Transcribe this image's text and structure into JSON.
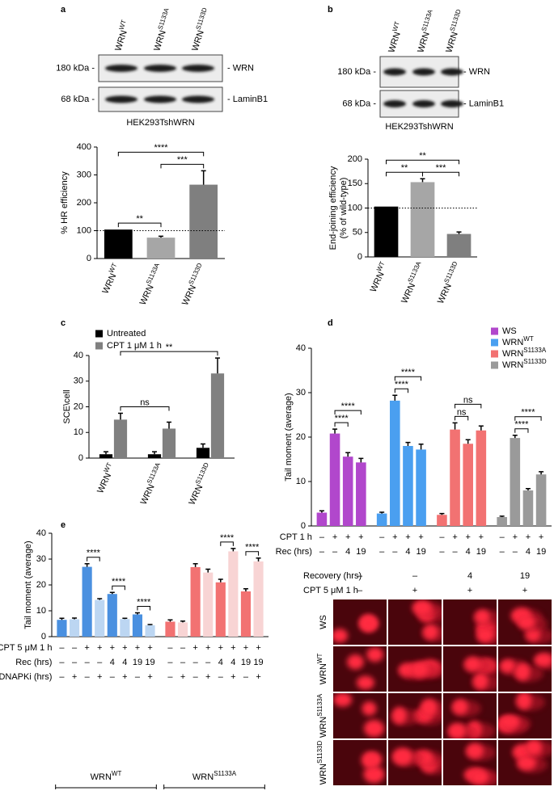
{
  "chart_data": [
    {
      "type": "bar",
      "panel": "a",
      "ylabel": "% HR efficiency",
      "categories": [
        {
          "text": "WRN",
          "sup": "WT"
        },
        {
          "text": "WRN",
          "sup": "S1133A"
        },
        {
          "text": "WRN",
          "sup": "S1133D"
        }
      ],
      "values": [
        104,
        75,
        265
      ],
      "errors": [
        null,
        5,
        50
      ],
      "colors": [
        "#000000",
        "#a6a6a6",
        "#7f7f7f"
      ],
      "ylim": [
        0,
        400
      ],
      "yticks": [
        0,
        100,
        200,
        300,
        400
      ],
      "reference_line": 100,
      "significance": [
        {
          "from": 0,
          "to": 2,
          "label": "****"
        },
        {
          "from": 0,
          "to": 1,
          "label": "**"
        },
        {
          "from": 1,
          "to": 2,
          "label": "***"
        }
      ]
    },
    {
      "type": "bar",
      "panel": "b",
      "ylabel": [
        "End-joining efficiency",
        "(% of wild-type)"
      ],
      "categories": [
        {
          "text": "WRN",
          "sup": "WT"
        },
        {
          "text": "WRN",
          "sup": "S1133A"
        },
        {
          "text": "WRN",
          "sup": "S1133D"
        }
      ],
      "values": [
        103,
        153,
        47
      ],
      "errors": [
        null,
        7,
        4
      ],
      "colors": [
        "#000000",
        "#a6a6a6",
        "#7f7f7f"
      ],
      "ylim": [
        0,
        200
      ],
      "yticks": [
        0,
        50,
        100,
        150,
        200
      ],
      "reference_line": 100,
      "significance": [
        {
          "from": 0,
          "to": 2,
          "label": "**"
        },
        {
          "from": 0,
          "to": 1,
          "label": "**"
        },
        {
          "from": 1,
          "to": 2,
          "label": "***"
        }
      ]
    },
    {
      "type": "bar",
      "panel": "c",
      "ylabel": "SCE\\cell",
      "legend": "top-left",
      "categories": [
        {
          "text": "WRN",
          "sup": "WT"
        },
        {
          "text": "WRN",
          "sup": "S1133A"
        },
        {
          "text": "WRN",
          "sup": "S1133D"
        }
      ],
      "series": [
        {
          "name": "Untreated",
          "color": "#000000",
          "values": [
            1.5,
            1.5,
            4
          ],
          "errors": [
            1,
            1,
            1.5
          ]
        },
        {
          "name": "CPT 1 μM 1 h",
          "color": "#808080",
          "values": [
            15,
            11.5,
            33
          ],
          "errors": [
            2.5,
            2.5,
            6
          ]
        }
      ],
      "ylim": [
        0,
        40
      ],
      "yticks": [
        0,
        10,
        20,
        30,
        40
      ],
      "significance": [
        {
          "from": 1,
          "to": 5,
          "label": "**"
        },
        {
          "from": 1,
          "to": 3,
          "label": "ns"
        }
      ]
    },
    {
      "type": "bar",
      "panel": "d",
      "ylabel": "Tail moment (average)",
      "legend": "top-right",
      "series": [
        {
          "name": "WS",
          "color": "#b147cc",
          "values": [
            3,
            20.8,
            15.6,
            14.3
          ],
          "errors": [
            0.4,
            1,
            0.9,
            0.9
          ]
        },
        {
          "name": "WRN",
          "sup": "WT",
          "color": "#4a9ff0",
          "values": [
            2.8,
            28.2,
            18,
            17.2
          ],
          "errors": [
            0.3,
            1.2,
            0.8,
            1.2
          ]
        },
        {
          "name": "WRN",
          "sup": "S1133A",
          "color": "#f27272",
          "values": [
            2.5,
            21.7,
            18.5,
            21.5
          ],
          "errors": [
            0.3,
            1.5,
            0.9,
            1
          ]
        },
        {
          "name": "WRN",
          "sup": "S1133D",
          "color": "#9a9a9a",
          "values": [
            2,
            19.8,
            8,
            11.6
          ],
          "errors": [
            0.2,
            0.6,
            0.4,
            0.6
          ]
        }
      ],
      "ylim": [
        0,
        40
      ],
      "yticks": [
        0,
        10,
        20,
        30,
        40
      ],
      "rows": [
        {
          "label": "CPT 1 h",
          "cells": [
            "–",
            "+",
            "+",
            "+",
            "–",
            "+",
            "+",
            "+",
            "–",
            "+",
            "+",
            "+",
            "–",
            "+",
            "+",
            "+"
          ]
        },
        {
          "label": "Rec (hrs)",
          "cells": [
            "–",
            "–",
            "4",
            "19",
            "–",
            "–",
            "4",
            "19",
            "–",
            "–",
            "4",
            "19",
            "–",
            "–",
            "4",
            "19"
          ]
        }
      ],
      "significance": [
        {
          "from": 1,
          "to": 2,
          "label": "****"
        },
        {
          "from": 1,
          "to": 3,
          "label": "****"
        },
        {
          "from": 5,
          "to": 6,
          "label": "****"
        },
        {
          "from": 5,
          "to": 7,
          "label": "****"
        },
        {
          "from": 9,
          "to": 10,
          "label": "ns"
        },
        {
          "from": 9,
          "to": 11,
          "label": "ns"
        },
        {
          "from": 13,
          "to": 14,
          "label": "****"
        },
        {
          "from": 13,
          "to": 15,
          "label": "****"
        }
      ]
    },
    {
      "type": "bar",
      "panel": "e",
      "ylabel": "Tail moment (average)",
      "series": [
        {
          "name": "WRN",
          "sup": "WT",
          "colors": [
            "#4a90e0",
            "#bcd6f2",
            "#4a90e0",
            "#bcd6f2",
            "#4a90e0",
            "#bcd6f2",
            "#4a90e0",
            "#bcd6f2"
          ],
          "values": [
            6.5,
            6.7,
            27,
            14.2,
            16.5,
            6.8,
            8.6,
            4.4
          ],
          "errors": [
            0.6,
            0.5,
            1.2,
            0.5,
            0.6,
            0.3,
            0.6,
            0.3
          ]
        },
        {
          "name": "WRN",
          "sup": "S1133A",
          "colors": [
            "#f27272",
            "#f8d4d4",
            "#f27272",
            "#f8d4d4",
            "#f27272",
            "#f8d4d4",
            "#f27272",
            "#f8d4d4"
          ],
          "values": [
            5.8,
            5.5,
            26.9,
            24.8,
            21,
            33,
            17.5,
            29.1
          ],
          "errors": [
            0.7,
            0.5,
            1.3,
            1.3,
            1.2,
            1.1,
            1,
            1.3
          ]
        }
      ],
      "ylim": [
        0,
        40
      ],
      "yticks": [
        0,
        10,
        20,
        30,
        40
      ],
      "rows": [
        {
          "label": "CPT 5 μM 1 h",
          "cells": [
            "–",
            "–",
            "+",
            "+",
            "+",
            "+",
            "+",
            "+",
            "–",
            "–",
            "+",
            "+",
            "+",
            "+",
            "+",
            "+"
          ]
        },
        {
          "label": "Rec (hrs)",
          "cells": [
            "–",
            "–",
            "–",
            "–",
            "4",
            "4",
            "19",
            "19",
            "–",
            "–",
            "–",
            "–",
            "4",
            "4",
            "19",
            "19"
          ]
        },
        {
          "label": "DNAPKi (hrs)",
          "cells": [
            "–",
            "+",
            "–",
            "+",
            "–",
            "+",
            "–",
            "+",
            "–",
            "+",
            "–",
            "+",
            "–",
            "+",
            "–",
            "+"
          ]
        }
      ],
      "significance": [
        {
          "from": 2,
          "to": 3,
          "label": "****"
        },
        {
          "from": 4,
          "to": 5,
          "label": "****"
        },
        {
          "from": 6,
          "to": 7,
          "label": "****"
        },
        {
          "from": 12,
          "to": 13,
          "label": "****"
        },
        {
          "from": 14,
          "to": 15,
          "label": "****"
        }
      ]
    }
  ],
  "blots": [
    {
      "lanes": [
        {
          "text": "WRN",
          "sup": "WT"
        },
        {
          "text": "WRN",
          "sup": "S1133A"
        },
        {
          "text": "WRN",
          "sup": "S1133D"
        }
      ],
      "bands": [
        {
          "size": "180 kDa -",
          "protein": "- WRN"
        },
        {
          "size": "68 kDa -",
          "protein": "- LaminB1"
        }
      ],
      "cell_line": "HEK293TshWRN"
    },
    {
      "lanes": [
        {
          "text": "WRN",
          "sup": "WT"
        },
        {
          "text": "WRN",
          "sup": "S1133A"
        },
        {
          "text": "WRN",
          "sup": "S1133D"
        }
      ],
      "bands": [
        {
          "size": "180 kDa -",
          "protein": "- WRN"
        },
        {
          "size": "68 kDa -",
          "protein": "- LaminB1"
        }
      ],
      "cell_line": "HEK293TshWRN"
    }
  ],
  "comet": {
    "header": [
      {
        "label": "Recovery (hrs)",
        "cells": [
          "–",
          "–",
          "4",
          "19"
        ]
      },
      {
        "label": "CPT 5 μM 1 h",
        "cells": [
          "–",
          "+",
          "+",
          "+"
        ]
      }
    ],
    "rows": [
      {
        "text": "WS"
      },
      {
        "text": "WRN",
        "sup": "WT"
      },
      {
        "text": "WRN",
        "sup": "S1133A"
      },
      {
        "text": "WRN",
        "sup": "S1133D"
      }
    ]
  }
}
